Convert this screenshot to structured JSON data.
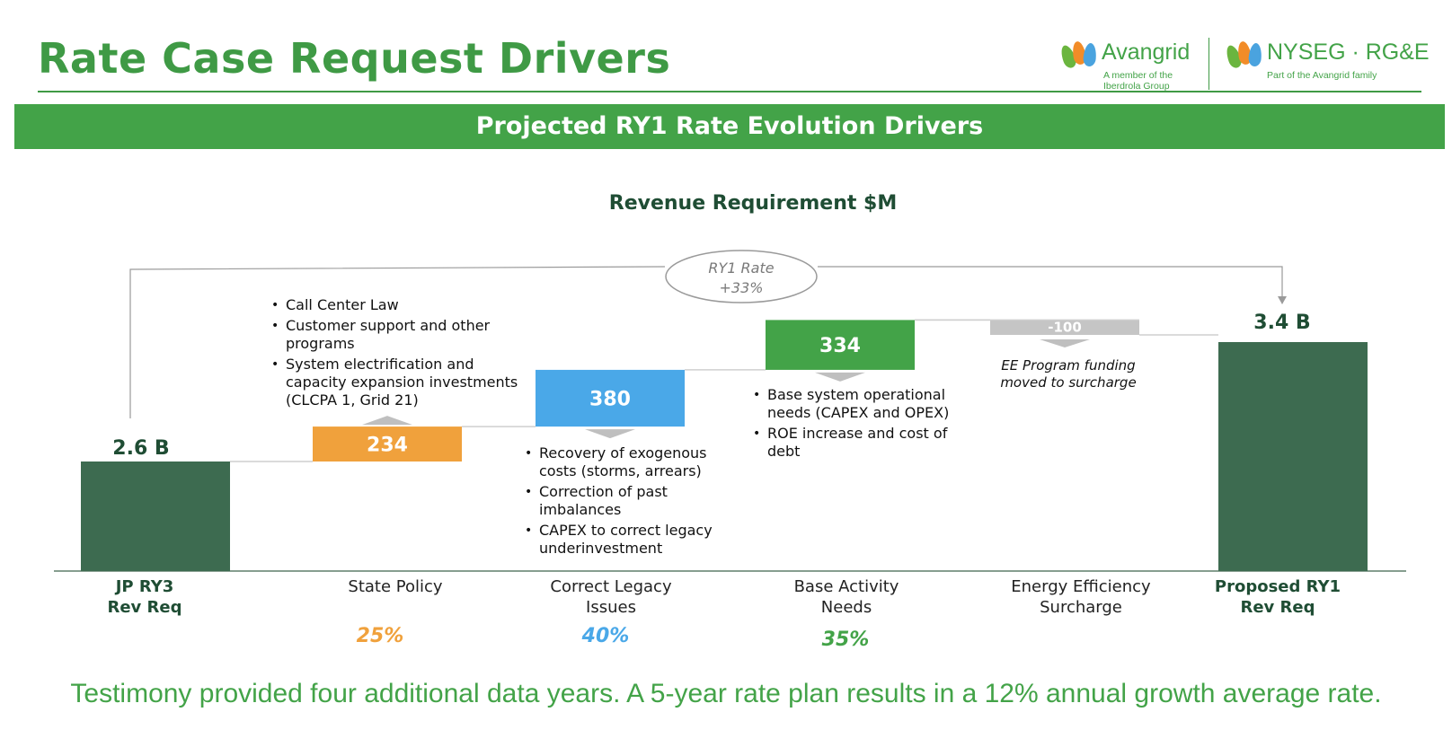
{
  "header": {
    "title": "Rate Case Request Drivers",
    "banner": "Projected RY1 Rate Evolution Drivers"
  },
  "logos": {
    "brand1_name": "Avangrid",
    "brand1_sub": "A member of the Iberdrola Group",
    "brand2_name": "NYSEG · RG&E",
    "brand2_sub": "Part of the Avangrid family",
    "colors": {
      "leaf_green": "#6bb53f",
      "leaf_orange": "#f28c28",
      "leaf_blue": "#4aa3df"
    }
  },
  "chart_data": {
    "type": "waterfall",
    "title": "Revenue Requirement $M",
    "categories": [
      "JP RY3 Rev Req",
      "State Policy",
      "Correct Legacy Issues",
      "Base Activity Needs",
      "Energy Efficiency Surcharge",
      "Proposed RY1 Rev Req"
    ],
    "category_lines": [
      [
        "JP RY3",
        "Rev Req"
      ],
      [
        "State Policy"
      ],
      [
        "Correct Legacy",
        "Issues"
      ],
      [
        "Base Activity",
        "Needs"
      ],
      [
        "Energy Efficiency",
        "Surcharge"
      ],
      [
        "Proposed RY1",
        "Rev Req"
      ]
    ],
    "start_value": 2600,
    "start_label": "2.6 B",
    "steps": [
      {
        "value": 234,
        "label": "234",
        "color": "#f0a13c"
      },
      {
        "value": 380,
        "label": "380",
        "color": "#4aa8e8"
      },
      {
        "value": 334,
        "label": "334",
        "color": "#43a348"
      },
      {
        "value": -100,
        "label": "-100",
        "color": "#c5c5c5"
      }
    ],
    "end_value": 3400,
    "end_label": "3.4 B",
    "total_color": "#3d6b50",
    "rate_annotation": [
      "RY1 Rate",
      "+33%"
    ],
    "driver_shares": [
      {
        "category": "State Policy",
        "label": "25%",
        "color": "#f0a13c"
      },
      {
        "category": "Correct Legacy Issues",
        "label": "40%",
        "color": "#4aa8e8"
      },
      {
        "category": "Base Activity Needs",
        "label": "35%",
        "color": "#43a348"
      }
    ]
  },
  "annotations": {
    "state_policy": [
      "Call Center Law",
      "Customer support and other programs",
      "System electrification and capacity expansion investments (CLCPA 1, Grid 21)"
    ],
    "legacy": [
      "Recovery of exogenous costs (storms, arrears)",
      "Correction of past imbalances",
      "CAPEX to correct legacy underinvestment"
    ],
    "base": [
      "Base system operational needs (CAPEX and OPEX)",
      "ROE increase and cost of debt"
    ],
    "ee_note": "EE Program funding moved to surcharge"
  },
  "footer": "Testimony provided four additional data years.  A 5-year rate plan results in a 12% annual growth average rate."
}
